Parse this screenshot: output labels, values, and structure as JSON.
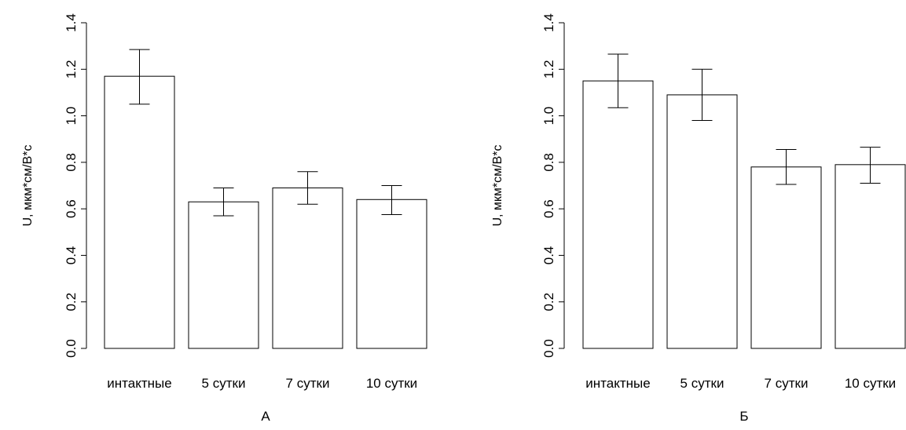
{
  "chart_data": [
    {
      "type": "bar",
      "panel_label": "А",
      "ylabel": "U, мкм*см/В*с",
      "xlabel": "",
      "ylim": [
        0,
        1.4
      ],
      "yticks": [
        "0.0",
        "0.2",
        "0.4",
        "0.6",
        "0.8",
        "1.0",
        "1.2",
        "1.4"
      ],
      "categories": [
        "интактные",
        "5 сутки",
        "7 сутки",
        "10 сутки"
      ],
      "values": [
        1.17,
        0.63,
        0.69,
        0.64
      ],
      "error_low": [
        1.05,
        0.57,
        0.62,
        0.575
      ],
      "error_high": [
        1.285,
        0.69,
        0.76,
        0.7
      ]
    },
    {
      "type": "bar",
      "panel_label": "Б",
      "ylabel": "U, мкм*см/В*с",
      "xlabel": "",
      "ylim": [
        0,
        1.4
      ],
      "yticks": [
        "0.0",
        "0.2",
        "0.4",
        "0.6",
        "0.8",
        "1.0",
        "1.2",
        "1.4"
      ],
      "categories": [
        "интактные",
        "5 сутки",
        "7 сутки",
        "10 сутки"
      ],
      "values": [
        1.15,
        1.09,
        0.78,
        0.79
      ],
      "error_low": [
        1.035,
        0.98,
        0.705,
        0.71
      ],
      "error_high": [
        1.265,
        1.2,
        0.855,
        0.865
      ]
    }
  ]
}
